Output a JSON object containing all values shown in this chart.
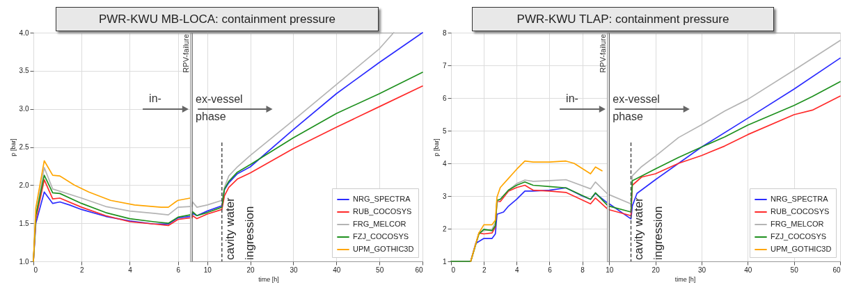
{
  "chart_data": [
    {
      "type": "line",
      "title": "PWR-KWU MB-LOCA: containment pressure",
      "ylabel": "p [bar]",
      "xlim": [
        0,
        6.5
      ],
      "xticks": [
        0,
        2,
        4,
        6
      ],
      "ylim": [
        1,
        4
      ],
      "yticks": [
        {
          "value": 1,
          "label": "1.0"
        },
        1.5,
        {
          "value": 2,
          "label": "2.0"
        },
        2.5,
        {
          "value": 3,
          "label": "3.0"
        },
        3.5,
        {
          "value": 4,
          "label": "4.0"
        }
      ],
      "grid": true,
      "series": [
        {
          "color": "#2b2bff",
          "x": [
            0,
            0.1,
            0.45,
            0.8,
            1.1,
            1.5,
            2,
            3,
            4,
            5,
            5.6,
            6,
            6.5
          ],
          "values": [
            1.0,
            1.5,
            1.91,
            1.76,
            1.78,
            1.74,
            1.68,
            1.59,
            1.53,
            1.49,
            1.49,
            1.57,
            1.59
          ]
        },
        {
          "color": "#ff2a2a",
          "x": [
            0,
            0.1,
            0.45,
            0.8,
            1.1,
            2,
            3,
            4,
            5,
            5.6,
            6,
            6.5
          ],
          "values": [
            1.0,
            1.55,
            2.07,
            1.82,
            1.83,
            1.71,
            1.6,
            1.52,
            1.49,
            1.47,
            1.55,
            1.57
          ]
        },
        {
          "color": "#b4b4b4",
          "x": [
            0,
            0.1,
            0.45,
            0.8,
            1.1,
            2,
            3,
            4,
            5,
            5.6,
            6,
            6.5
          ],
          "values": [
            1.0,
            1.6,
            2.23,
            1.95,
            1.92,
            1.83,
            1.72,
            1.66,
            1.63,
            1.61,
            1.71,
            1.72
          ]
        },
        {
          "color": "#1e901e",
          "x": [
            0,
            0.1,
            0.45,
            0.8,
            1.1,
            2,
            3,
            4,
            5,
            5.6,
            6,
            6.5
          ],
          "values": [
            1.0,
            1.6,
            2.13,
            1.9,
            1.89,
            1.76,
            1.64,
            1.56,
            1.52,
            1.5,
            1.58,
            1.61
          ]
        },
        {
          "color": "#ffa500",
          "x": [
            0,
            0.1,
            0.45,
            0.8,
            1.1,
            1.7,
            2.3,
            3.2,
            4.2,
            5.3,
            5.6,
            5.9,
            6,
            6.5
          ],
          "values": [
            1.0,
            1.7,
            2.32,
            2.13,
            2.12,
            2.0,
            1.91,
            1.8,
            1.74,
            1.71,
            1.71,
            1.78,
            1.8,
            1.83
          ]
        }
      ],
      "annotations": [
        "in-"
      ]
    },
    {
      "type": "line",
      "xlabel": "time [h]",
      "xlim": [
        6,
        60
      ],
      "xticks": [
        10,
        20,
        30,
        40,
        50,
        60
      ],
      "ylim": [
        1,
        4
      ],
      "tick_labels": "x",
      "grid": true,
      "legend": "bottom right",
      "series": [
        {
          "name": "NRG_SPECTRA",
          "color": "#2b2bff",
          "x": [
            6.5,
            6.6,
            7.6,
            10,
            13.4,
            14,
            15,
            17,
            20,
            30,
            40,
            50,
            60
          ],
          "values": [
            1.59,
            1.63,
            1.6,
            1.66,
            1.73,
            1.94,
            2.03,
            2.15,
            2.24,
            2.73,
            3.2,
            3.61,
            4.0
          ]
        },
        {
          "name": "RUB_COCOSYS",
          "color": "#ff2a2a",
          "x": [
            6.5,
            6.6,
            7.6,
            10,
            13.4,
            14,
            15,
            17,
            20,
            30,
            40,
            50,
            60
          ],
          "values": [
            1.57,
            1.6,
            1.56,
            1.62,
            1.68,
            1.86,
            1.97,
            2.08,
            2.16,
            2.48,
            2.76,
            3.03,
            3.3
          ]
        },
        {
          "name": "FRG_MELCOR",
          "color": "#b4b4b4",
          "x": [
            6.5,
            6.6,
            7.6,
            10,
            13.4,
            14,
            15,
            17,
            20,
            30,
            40,
            50,
            53.3
          ],
          "values": [
            1.72,
            1.78,
            1.71,
            1.74,
            1.8,
            1.97,
            2.12,
            2.24,
            2.39,
            2.85,
            3.32,
            3.79,
            4.0
          ]
        },
        {
          "name": "FZJ_COCOSYS",
          "color": "#1e901e",
          "x": [
            6.5,
            6.6,
            7.6,
            10,
            13.4,
            14,
            15,
            17,
            20,
            30,
            40,
            50,
            60
          ],
          "values": [
            1.61,
            1.65,
            1.6,
            1.64,
            1.71,
            1.95,
            2.05,
            2.17,
            2.27,
            2.62,
            2.94,
            3.2,
            3.48
          ]
        },
        {
          "name": "UPM_GOTHIC3D",
          "color": "#ffa500"
        }
      ],
      "ref_lines": [
        {
          "axis": "x",
          "value": 6.5,
          "label": "RPV-failure"
        },
        {
          "axis": "x",
          "value": 13.4,
          "label": "cavity water ingression",
          "line_style": "dashed"
        }
      ],
      "annotations": [
        "ex-vessel phase"
      ]
    },
    {
      "type": "line",
      "title": "PWR-KWU TLAP: containment pressure",
      "ylabel": "p [bar]",
      "xlim": [
        0,
        9.5
      ],
      "xticks": [
        0,
        2,
        4,
        6,
        8
      ],
      "ylim": [
        1,
        8
      ],
      "yticks": [
        1,
        2,
        3,
        4,
        5,
        6,
        7,
        8
      ],
      "grid": true,
      "series": [
        {
          "color": "#2b2bff",
          "x": [
            0,
            1.2,
            1.5,
            2,
            2.5,
            2.7,
            2.8,
            3.2,
            3.5,
            4,
            4.5,
            5,
            6,
            7,
            8,
            8.5,
            8.8,
            9.5
          ],
          "values": [
            1,
            1,
            1.55,
            1.7,
            1.7,
            1.84,
            2.44,
            2.51,
            2.69,
            2.9,
            3.15,
            3.15,
            3.18,
            3.25,
            3.0,
            2.9,
            3.08,
            2.8
          ]
        },
        {
          "color": "#ff2a2a",
          "x": [
            0,
            1.2,
            1.7,
            2,
            2.5,
            2.7,
            2.8,
            3,
            3.5,
            4,
            4.5,
            5,
            6,
            7,
            8.5,
            8.8,
            9.5
          ],
          "values": [
            1,
            1,
            1.87,
            1.84,
            1.87,
            2.05,
            2.83,
            2.83,
            3.15,
            3.26,
            3.33,
            3.18,
            3.15,
            3.11,
            2.76,
            2.94,
            2.62
          ]
        },
        {
          "color": "#b4b4b4",
          "x": [
            0,
            1.2,
            1.7,
            2,
            2.5,
            2.7,
            2.8,
            3,
            3.5,
            4,
            4.5,
            5,
            6,
            7,
            8.5,
            8.8,
            9.5
          ],
          "values": [
            1,
            1,
            1.87,
            1.94,
            1.98,
            2.19,
            2.83,
            2.9,
            3.18,
            3.38,
            3.49,
            3.45,
            3.47,
            3.5,
            3.22,
            3.43,
            3.08
          ]
        },
        {
          "color": "#1e901e",
          "x": [
            0,
            1.2,
            1.7,
            2,
            2.5,
            2.7,
            2.8,
            3,
            3.5,
            4,
            4.5,
            5,
            6,
            7,
            8.5,
            8.8,
            9.5
          ],
          "values": [
            1,
            1,
            1.84,
            1.98,
            1.94,
            2.09,
            2.87,
            2.9,
            3.18,
            3.33,
            3.43,
            3.33,
            3.29,
            3.25,
            2.9,
            3.1,
            2.73
          ]
        },
        {
          "color": "#ffa500",
          "x": [
            1.2,
            1.7,
            2,
            2.5,
            2.7,
            2.8,
            3,
            3.5,
            4,
            4.5,
            5,
            6,
            7,
            7.5,
            8.5,
            8.8,
            9.2
          ],
          "values": [
            1,
            1.87,
            2.12,
            2.12,
            2.26,
            2.97,
            3.26,
            3.54,
            3.82,
            4.07,
            4.04,
            4.04,
            4.07,
            4.0,
            3.68,
            3.89,
            3.77
          ]
        }
      ],
      "annotations": [
        "in-"
      ]
    },
    {
      "type": "line",
      "xlabel": "time [h]",
      "xlim": [
        9.5,
        60
      ],
      "xticks": [
        10,
        20,
        30,
        40,
        50,
        60
      ],
      "ylim": [
        1,
        8
      ],
      "tick_labels": "x",
      "grid": true,
      "legend": "bottom right",
      "series": [
        {
          "name": "NRG_SPECTRA",
          "color": "#2b2bff",
          "x": [
            10,
            14.7,
            15,
            16,
            20,
            30,
            40,
            50,
            60
          ],
          "values": [
            2.76,
            2.3,
            2.7,
            3.08,
            3.5,
            4.5,
            5.38,
            6.27,
            7.22
          ]
        },
        {
          "name": "RUB_COCOSYS",
          "color": "#ff2a2a",
          "x": [
            10,
            14.7,
            15,
            17,
            20,
            25,
            30,
            35,
            40,
            50,
            54,
            60
          ],
          "values": [
            2.58,
            2.4,
            3.33,
            3.58,
            3.68,
            4.0,
            4.24,
            4.53,
            4.88,
            5.49,
            5.63,
            6.06
          ]
        },
        {
          "name": "FRG_MELCOR",
          "color": "#b4b4b4",
          "x": [
            10,
            14.7,
            15,
            17,
            20,
            25,
            30,
            35,
            40,
            50,
            60
          ],
          "values": [
            3.04,
            2.76,
            3.62,
            3.9,
            4.22,
            4.79,
            5.18,
            5.6,
            5.96,
            6.85,
            7.76
          ]
        },
        {
          "name": "FZJ_COCOSYS",
          "color": "#1e901e",
          "x": [
            10,
            14.7,
            15,
            17,
            20,
            25,
            30,
            35,
            40,
            50,
            54,
            60
          ],
          "values": [
            2.69,
            2.51,
            3.47,
            3.61,
            3.83,
            4.18,
            4.5,
            4.81,
            5.17,
            5.77,
            6.05,
            6.5
          ]
        },
        {
          "name": "UPM_GOTHIC3D",
          "color": "#ffa500"
        }
      ],
      "ref_lines": [
        {
          "axis": "x",
          "value": 10,
          "label": "RPV-failure"
        },
        {
          "axis": "x",
          "value": 14.7,
          "label": "cavity water ingression",
          "line_style": "dashed"
        }
      ],
      "annotations": [
        "ex-vessel phase"
      ]
    }
  ]
}
